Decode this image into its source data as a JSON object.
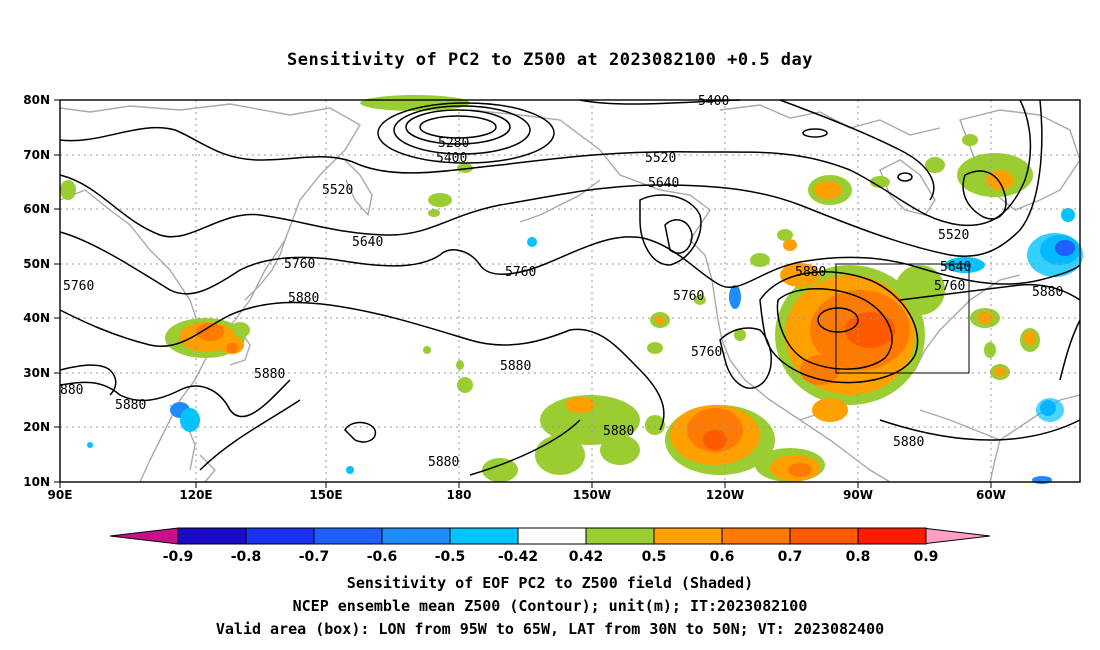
{
  "title": "Sensitivity of PC2 to Z500 at 2023082100 +0.5 day",
  "lat_labels": [
    "80N",
    "70N",
    "60N",
    "50N",
    "40N",
    "30N",
    "20N",
    "10N"
  ],
  "lon_labels": [
    "90E",
    "120E",
    "150E",
    "180",
    "150W",
    "120W",
    "90W",
    "60W"
  ],
  "contour_labels": [
    "5400",
    "5280",
    "5400",
    "5520",
    "5520",
    "5640",
    "5640",
    "5520",
    "5760",
    "5760",
    "5760",
    "5880",
    "5880",
    "5640",
    "5760",
    "5880",
    "5760",
    "5760",
    "5880",
    "5880",
    "5880",
    "5880",
    "5880",
    "5880",
    "880"
  ],
  "colorbar": {
    "labels": [
      "-0.9",
      "-0.8",
      "-0.7",
      "-0.6",
      "-0.5",
      "-0.42",
      "0.42",
      "0.5",
      "0.6",
      "0.7",
      "0.8",
      "0.9"
    ],
    "colors": [
      "#1a0bc4",
      "#1b33f0",
      "#1f5fff",
      "#1e8cff",
      "#00c3ff",
      "#ffffff",
      "#9acd32",
      "#ff9f00",
      "#ff7a00",
      "#ff5a00",
      "#ff1a00"
    ],
    "end_low": "#c8108c",
    "end_high": "#ff9fc8"
  },
  "footer": [
    "Sensitivity of EOF PC2 to Z500 field (Shaded)",
    "NCEP ensemble mean Z500 (Contour); unit(m); IT:2023082100",
    "Valid area (box): LON from 95W to 65W, LAT from 30N to 50N; VT: 2023082400"
  ]
}
